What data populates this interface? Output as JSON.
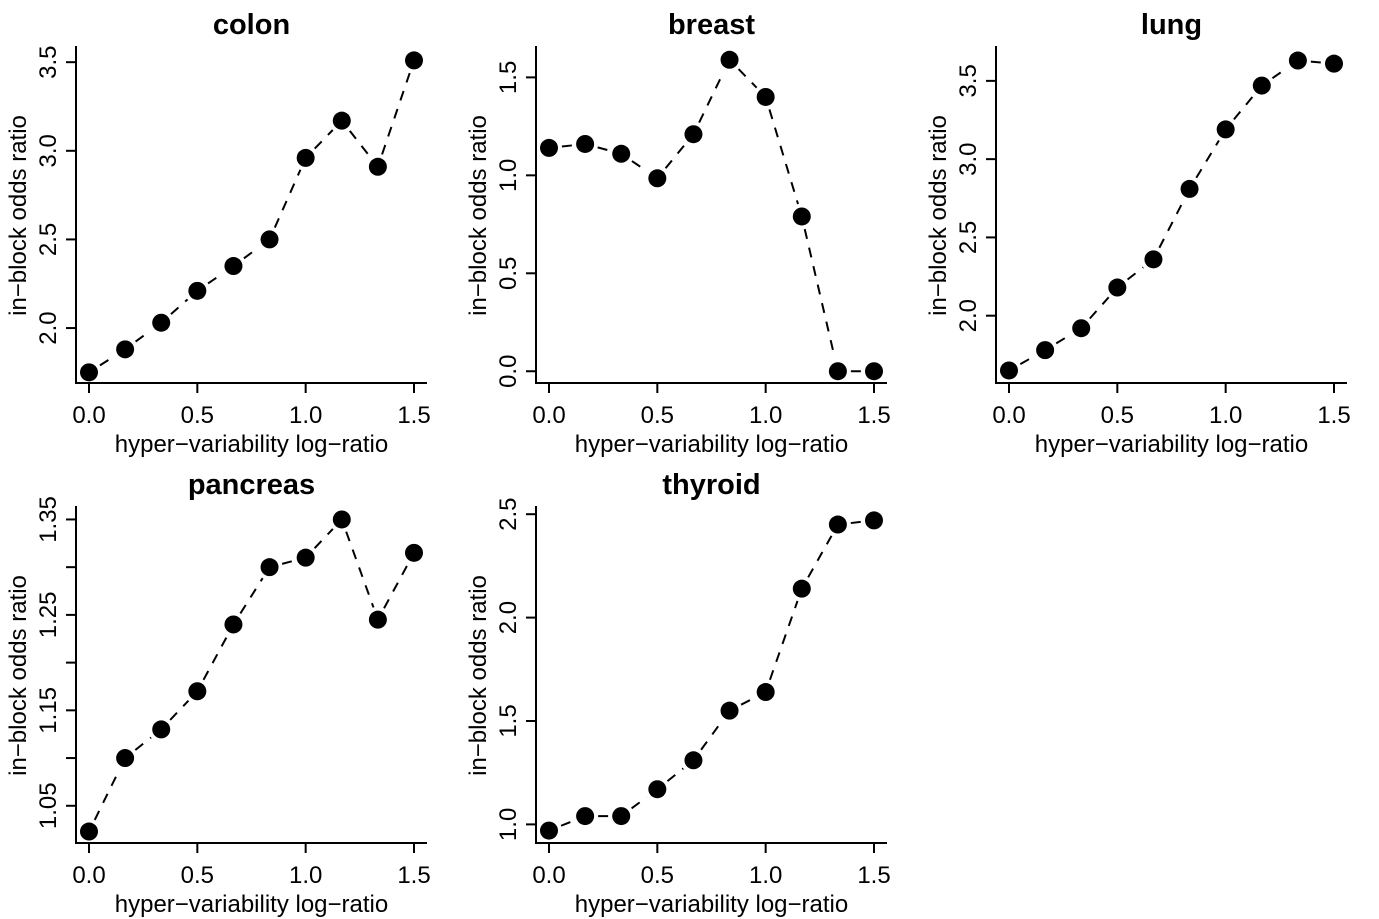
{
  "chart_data": [
    {
      "type": "line",
      "title": "colon",
      "xlabel": "hyper−variability log−ratio",
      "ylabel": "in−block odds ratio",
      "x": [
        0.0,
        0.1667,
        0.3333,
        0.5,
        0.6667,
        0.8333,
        1.0,
        1.1667,
        1.3333,
        1.5
      ],
      "values": [
        1.75,
        1.88,
        2.03,
        2.21,
        2.35,
        2.5,
        2.96,
        3.17,
        2.91,
        3.51
      ],
      "xticks": [
        "0.0",
        "0.5",
        "1.0",
        "1.5"
      ],
      "xtick_values": [
        0.0,
        0.5,
        1.0,
        1.5
      ],
      "yticks": [
        "2.0",
        "2.5",
        "3.0",
        "3.5"
      ],
      "ytick_values": [
        2.0,
        2.5,
        3.0,
        3.5
      ],
      "xlim": [
        -0.06,
        1.56
      ],
      "ylim": [
        1.69,
        3.58
      ],
      "line_style": "dashed",
      "marker": "filled-circle",
      "grid": false
    },
    {
      "type": "line",
      "title": "breast",
      "xlabel": "hyper−variability log−ratio",
      "ylabel": "in−block odds ratio",
      "x": [
        0.0,
        0.1667,
        0.3333,
        0.5,
        0.6667,
        0.8333,
        1.0,
        1.1667,
        1.3333,
        1.5
      ],
      "values": [
        1.14,
        1.16,
        1.11,
        0.985,
        1.21,
        1.59,
        1.4,
        0.79,
        0.0,
        0.0
      ],
      "xticks": [
        "0.0",
        "0.5",
        "1.0",
        "1.5"
      ],
      "xtick_values": [
        0.0,
        0.5,
        1.0,
        1.5
      ],
      "yticks": [
        "0.0",
        "0.5",
        "1.0",
        "1.5"
      ],
      "ytick_values": [
        0.0,
        0.5,
        1.0,
        1.5
      ],
      "xlim": [
        -0.06,
        1.56
      ],
      "ylim": [
        -0.06,
        1.65
      ],
      "line_style": "dashed",
      "marker": "filled-circle",
      "grid": false
    },
    {
      "type": "line",
      "title": "lung",
      "xlabel": "hyper−variability log−ratio",
      "ylabel": "in−block odds ratio",
      "x": [
        0.0,
        0.1667,
        0.3333,
        0.5,
        0.6667,
        0.8333,
        1.0,
        1.1667,
        1.3333,
        1.5
      ],
      "values": [
        1.65,
        1.78,
        1.92,
        2.18,
        2.36,
        2.81,
        3.19,
        3.47,
        3.63,
        3.61
      ],
      "xticks": [
        "0.0",
        "0.5",
        "1.0",
        "1.5"
      ],
      "xtick_values": [
        0.0,
        0.5,
        1.0,
        1.5
      ],
      "yticks": [
        "2.0",
        "2.5",
        "3.0",
        "3.5"
      ],
      "ytick_values": [
        2.0,
        2.5,
        3.0,
        3.5
      ],
      "xlim": [
        -0.06,
        1.56
      ],
      "ylim": [
        1.57,
        3.71
      ],
      "line_style": "dashed",
      "marker": "filled-circle",
      "grid": false
    },
    {
      "type": "line",
      "title": "pancreas",
      "xlabel": "hyper−variability log−ratio",
      "ylabel": "in−block odds ratio",
      "x": [
        0.0,
        0.1667,
        0.3333,
        0.5,
        0.6667,
        0.8333,
        1.0,
        1.1667,
        1.3333,
        1.5
      ],
      "values": [
        1.023,
        1.1,
        1.13,
        1.17,
        1.24,
        1.3,
        1.31,
        1.35,
        1.245,
        1.315
      ],
      "xticks": [
        "0.0",
        "0.5",
        "1.0",
        "1.5"
      ],
      "xtick_values": [
        0.0,
        0.5,
        1.0,
        1.5
      ],
      "yticks": [
        "1.05",
        "1.15",
        "1.25",
        "1.35"
      ],
      "ytick_values": [
        1.05,
        1.1,
        1.15,
        1.2,
        1.25,
        1.3,
        1.35
      ],
      "ytick_labels_shown": [
        "1.05",
        "",
        "1.15",
        "",
        "1.25",
        "",
        "1.35"
      ],
      "xlim": [
        -0.06,
        1.56
      ],
      "ylim": [
        1.011,
        1.362
      ],
      "line_style": "dashed",
      "marker": "filled-circle",
      "grid": false
    },
    {
      "type": "line",
      "title": "thyroid",
      "xlabel": "hyper−variability log−ratio",
      "ylabel": "in−block odds ratio",
      "x": [
        0.0,
        0.1667,
        0.3333,
        0.5,
        0.6667,
        0.8333,
        1.0,
        1.1667,
        1.3333,
        1.5
      ],
      "values": [
        0.97,
        1.04,
        1.04,
        1.17,
        1.31,
        1.55,
        1.64,
        2.14,
        2.45,
        2.47
      ],
      "xticks": [
        "0.0",
        "0.5",
        "1.0",
        "1.5"
      ],
      "xtick_values": [
        0.0,
        0.5,
        1.0,
        1.5
      ],
      "yticks": [
        "1.0",
        "1.5",
        "2.0",
        "2.5"
      ],
      "ytick_values": [
        1.0,
        1.5,
        2.0,
        2.5
      ],
      "xlim": [
        -0.06,
        1.56
      ],
      "ylim": [
        0.91,
        2.53
      ],
      "line_style": "dashed",
      "marker": "filled-circle",
      "grid": false
    }
  ]
}
